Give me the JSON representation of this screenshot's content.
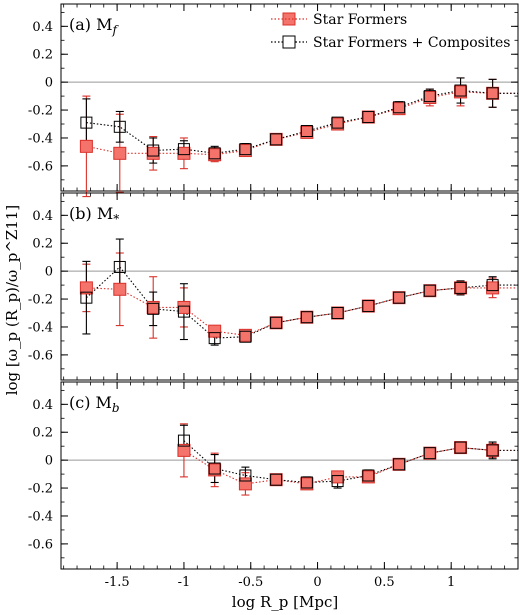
{
  "chart_data": {
    "type": "scatter",
    "xlabel": "log R_p [Mpc]",
    "ylabel": "log [ω_p (R_p)/ω_p^Z11]",
    "xlim": [
      -1.92,
      1.5
    ],
    "ylim": [
      -0.78,
      0.56
    ],
    "x_ticks": [
      -1.5,
      -1,
      -0.5,
      0,
      0.5,
      1
    ],
    "x_tick_labels": [
      "-1.5",
      "-1",
      "-0.5",
      "0",
      "0.5",
      "1"
    ],
    "y_ticks": [
      -0.6,
      -0.4,
      -0.2,
      0,
      0.2,
      0.4
    ],
    "y_tick_labels": [
      "-0.6",
      "-0.4",
      "-0.2",
      "0",
      "0.2",
      "0.4"
    ],
    "reference_line": 0,
    "colors": {
      "sf_fill": "#f4736b",
      "sf_line": "#d9302a",
      "comp_fill": "#ffffff",
      "comp_line": "#000000"
    },
    "legend": {
      "placement": "top-right",
      "entries": [
        "Star Formers",
        "Star Formers + Composites"
      ]
    },
    "panels": [
      {
        "label": "(a) M",
        "label_sub": "f",
        "series": [
          {
            "name": "Star Formers",
            "x": [
              -1.73,
              -1.48,
              -1.23,
              -1.0,
              -0.77,
              -0.54,
              -0.31,
              -0.08,
              0.15,
              0.38,
              0.61,
              0.84,
              1.07,
              1.31
            ],
            "y": [
              -0.46,
              -0.51,
              -0.51,
              -0.51,
              -0.52,
              -0.49,
              -0.41,
              -0.36,
              -0.3,
              -0.25,
              -0.19,
              -0.11,
              -0.07,
              -0.08
            ],
            "yerr": [
              0.36,
              0.28,
              0.12,
              0.11,
              0.05,
              0.04,
              0.03,
              0.03,
              0.03,
              0.03,
              0.04,
              0.06,
              0.1,
              0.1
            ]
          },
          {
            "name": "Star Formers + Composites",
            "x": [
              -1.73,
              -1.48,
              -1.23,
              -1.0,
              -0.77,
              -0.54,
              -0.31,
              -0.08,
              0.15,
              0.38,
              0.61,
              0.84,
              1.07,
              1.31
            ],
            "y": [
              -0.29,
              -0.32,
              -0.49,
              -0.48,
              -0.51,
              -0.48,
              -0.41,
              -0.35,
              -0.29,
              -0.25,
              -0.18,
              -0.1,
              -0.06,
              -0.08
            ],
            "yerr": [
              0.17,
              0.11,
              0.09,
              0.06,
              0.05,
              0.04,
              0.03,
              0.03,
              0.03,
              0.03,
              0.04,
              0.05,
              0.09,
              0.1
            ]
          }
        ]
      },
      {
        "label": "(b) M",
        "label_sub": "*",
        "series": [
          {
            "name": "Star Formers",
            "x": [
              -1.73,
              -1.48,
              -1.23,
              -1.0,
              -0.77,
              -0.54,
              -0.31,
              -0.08,
              0.15,
              0.38,
              0.61,
              0.84,
              1.07,
              1.31
            ],
            "y": [
              -0.12,
              -0.13,
              -0.26,
              -0.26,
              -0.43,
              -0.46,
              -0.37,
              -0.33,
              -0.3,
              -0.25,
              -0.19,
              -0.14,
              -0.12,
              -0.12
            ],
            "yerr": [
              0.17,
              0.26,
              0.22,
              0.14,
              0.04,
              0.03,
              0.03,
              0.03,
              0.03,
              0.03,
              0.03,
              0.04,
              0.05,
              0.07
            ]
          },
          {
            "name": "Star Formers + Composites",
            "x": [
              -1.73,
              -1.48,
              -1.23,
              -1.0,
              -0.77,
              -0.54,
              -0.31,
              -0.08,
              0.15,
              0.38,
              0.61,
              0.84,
              1.07,
              1.31
            ],
            "y": [
              -0.19,
              0.03,
              -0.27,
              -0.29,
              -0.48,
              -0.47,
              -0.37,
              -0.33,
              -0.3,
              -0.25,
              -0.19,
              -0.14,
              -0.12,
              -0.1
            ],
            "yerr": [
              0.26,
              0.2,
              0.12,
              0.2,
              0.05,
              0.03,
              0.03,
              0.03,
              0.03,
              0.03,
              0.03,
              0.04,
              0.05,
              0.06
            ]
          }
        ]
      },
      {
        "label": "(c) M",
        "label_sub": "b",
        "series": [
          {
            "name": "Star Formers",
            "x": [
              -1.0,
              -0.77,
              -0.54,
              -0.31,
              -0.08,
              0.15,
              0.38,
              0.61,
              0.84,
              1.07,
              1.31
            ],
            "y": [
              0.07,
              -0.07,
              -0.17,
              -0.14,
              -0.17,
              -0.12,
              -0.12,
              -0.03,
              0.05,
              0.09,
              0.07
            ],
            "yerr": [
              0.19,
              0.12,
              0.08,
              0.04,
              0.04,
              0.04,
              0.04,
              0.03,
              0.03,
              0.04,
              0.05
            ]
          },
          {
            "name": "Star Formers + Composites",
            "x": [
              -1.0,
              -0.77,
              -0.54,
              -0.31,
              -0.08,
              0.15,
              0.38,
              0.61,
              0.84,
              1.07,
              1.31
            ],
            "y": [
              0.14,
              -0.06,
              -0.11,
              -0.14,
              -0.16,
              -0.15,
              -0.11,
              -0.03,
              0.05,
              0.09,
              0.07
            ],
            "yerr": [
              0.11,
              0.1,
              0.06,
              0.04,
              0.04,
              0.05,
              0.04,
              0.03,
              0.03,
              0.04,
              0.06
            ]
          }
        ]
      }
    ]
  }
}
